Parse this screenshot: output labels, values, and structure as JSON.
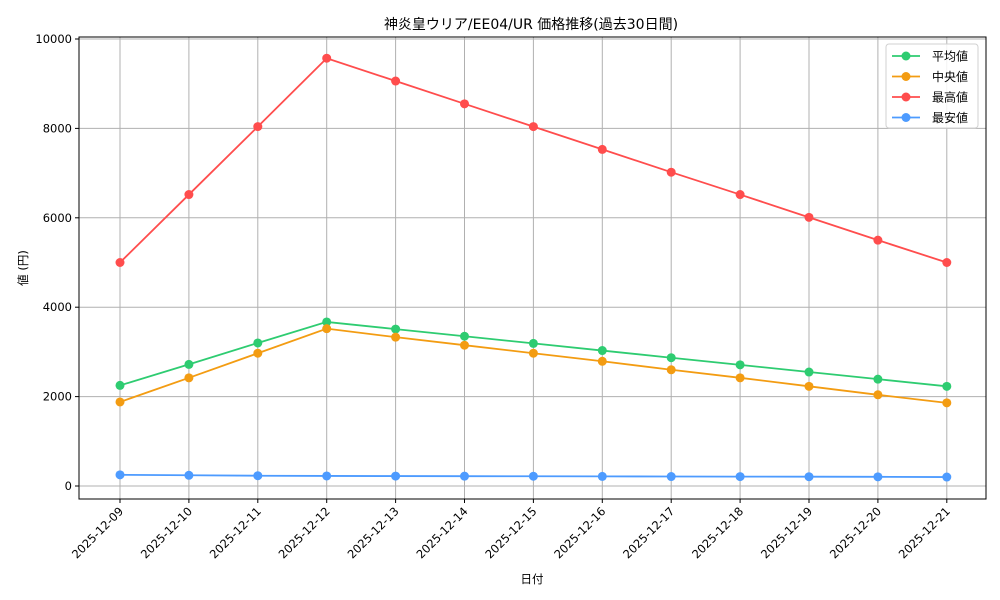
{
  "chart_data": {
    "type": "line",
    "title": "神炎皇ウリア/EE04/UR 価格推移(過去30日間)",
    "xlabel": "日付",
    "ylabel": "値 (円)",
    "ylim": [
      -300,
      10050
    ],
    "yticks": [
      0,
      2000,
      4000,
      6000,
      8000,
      10000
    ],
    "grid": true,
    "legend_position": "upper right",
    "x": [
      "2025-12-09",
      "2025-12-10",
      "2025-12-11",
      "2025-12-12",
      "2025-12-13",
      "2025-12-14",
      "2025-12-15",
      "2025-12-16",
      "2025-12-17",
      "2025-12-18",
      "2025-12-19",
      "2025-12-20",
      "2025-12-21"
    ],
    "series": [
      {
        "name": "平均値",
        "color": "#2ecc71",
        "values": [
          2250,
          2720,
          3200,
          3670,
          3510,
          3350,
          3190,
          3030,
          2870,
          2710,
          2550,
          2390,
          2230
        ]
      },
      {
        "name": "中央値",
        "color": "#f39c12",
        "values": [
          1880,
          2420,
          2970,
          3520,
          3330,
          3150,
          2970,
          2790,
          2600,
          2420,
          2230,
          2040,
          1860
        ]
      },
      {
        "name": "最高値",
        "color": "#ff4d4d",
        "values": [
          5000,
          6520,
          8040,
          9570,
          9060,
          8550,
          8040,
          7530,
          7020,
          6520,
          6010,
          5500,
          5000
        ]
      },
      {
        "name": "最安値",
        "color": "#4d9bff",
        "values": [
          250,
          240,
          230,
          225,
          222,
          220,
          218,
          215,
          212,
          210,
          208,
          205,
          200
        ]
      }
    ]
  }
}
